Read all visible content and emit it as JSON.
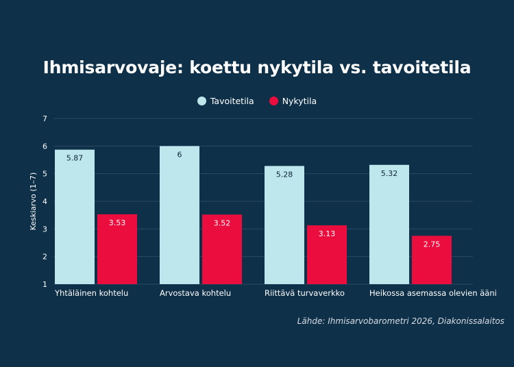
{
  "chart_data": {
    "type": "bar",
    "title": "Ihmisarvovaje: koettu nykytila vs. tavoitetila",
    "ylabel": "Keskiarvo (1–7)",
    "ylim": [
      1,
      7
    ],
    "yticks": [
      "1",
      "2",
      "3",
      "4",
      "5",
      "6",
      "7"
    ],
    "grid": true,
    "legend_position": "top-center",
    "categories": [
      "Yhtäläinen kohtelu",
      "Arvostava kohtelu",
      "Riittävä turvaverkko",
      "Heikossa asemassa olevien ääni"
    ],
    "series": [
      {
        "name": "Tavoitetila",
        "color": "#bde7ec",
        "values": [
          5.87,
          6,
          5.28,
          5.32
        ],
        "labels": [
          "5.87",
          "6",
          "5.28",
          "5.32"
        ]
      },
      {
        "name": "Nykytila",
        "color": "#ec0d3f",
        "values": [
          3.53,
          3.52,
          3.13,
          2.75
        ],
        "labels": [
          "3.53",
          "3.52",
          "3.13",
          "2.75"
        ]
      }
    ]
  },
  "source_note": "Lähde: Ihmisarvobarometri 2026, Diakonissalaitos"
}
